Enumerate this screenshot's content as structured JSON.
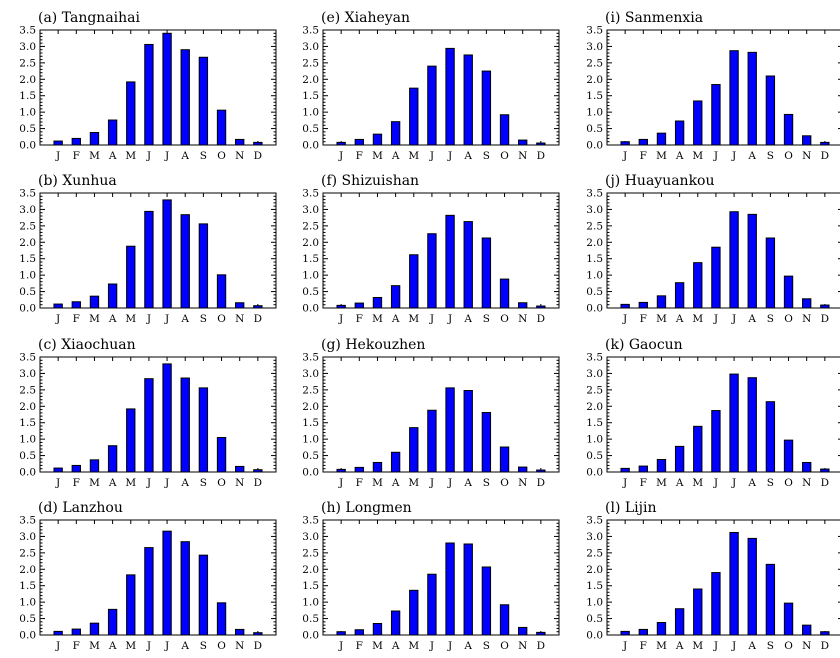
{
  "figure": {
    "colors": {
      "bar_fill": "#0000FF",
      "bar_edge": "#000000",
      "axis": "#000000",
      "background": "#FFFFFF"
    }
  },
  "chart_data": [
    {
      "type": "bar",
      "title": "(a) Tangnaihai",
      "categories": [
        "J",
        "F",
        "M",
        "A",
        "M",
        "J",
        "J",
        "A",
        "S",
        "O",
        "N",
        "D"
      ],
      "values": [
        0.12,
        0.2,
        0.38,
        0.76,
        1.92,
        3.06,
        3.4,
        2.9,
        2.67,
        1.06,
        0.17,
        0.08
      ],
      "ylim": [
        0,
        3.5
      ],
      "yticks": [
        "0.0",
        "0.5",
        "1.0",
        "1.5",
        "2.0",
        "2.5",
        "3.0",
        "3.5"
      ],
      "xlabel": "",
      "ylabel": ""
    },
    {
      "type": "bar",
      "title": "(e) Xiaheyan",
      "categories": [
        "J",
        "F",
        "M",
        "A",
        "M",
        "J",
        "J",
        "A",
        "S",
        "O",
        "N",
        "D"
      ],
      "values": [
        0.08,
        0.17,
        0.33,
        0.71,
        1.73,
        2.4,
        2.94,
        2.74,
        2.25,
        0.92,
        0.15,
        0.06
      ],
      "ylim": [
        0,
        3.5
      ],
      "yticks": [
        "0.0",
        "0.5",
        "1.0",
        "1.5",
        "2.0",
        "2.5",
        "3.0",
        "3.5"
      ],
      "xlabel": "",
      "ylabel": ""
    },
    {
      "type": "bar",
      "title": "(i) Sanmenxia",
      "categories": [
        "J",
        "F",
        "M",
        "A",
        "M",
        "J",
        "J",
        "A",
        "S",
        "O",
        "N",
        "D"
      ],
      "values": [
        0.1,
        0.17,
        0.36,
        0.73,
        1.34,
        1.84,
        2.87,
        2.82,
        2.1,
        0.93,
        0.28,
        0.08
      ],
      "ylim": [
        0,
        3.5
      ],
      "yticks": [
        "0.0",
        "0.5",
        "1.0",
        "1.5",
        "2.0",
        "2.5",
        "3.0",
        "3.5"
      ],
      "xlabel": "",
      "ylabel": ""
    },
    {
      "type": "bar",
      "title": "(b) Xunhua",
      "categories": [
        "J",
        "F",
        "M",
        "A",
        "M",
        "J",
        "J",
        "A",
        "S",
        "O",
        "N",
        "D"
      ],
      "values": [
        0.12,
        0.19,
        0.36,
        0.73,
        1.88,
        2.94,
        3.29,
        2.84,
        2.56,
        1.01,
        0.16,
        0.07
      ],
      "ylim": [
        0,
        3.5
      ],
      "yticks": [
        "0.0",
        "0.5",
        "1.0",
        "1.5",
        "2.0",
        "2.5",
        "3.0",
        "3.5"
      ],
      "xlabel": "",
      "ylabel": ""
    },
    {
      "type": "bar",
      "title": "(f) Shizuishan",
      "categories": [
        "J",
        "F",
        "M",
        "A",
        "M",
        "J",
        "J",
        "A",
        "S",
        "O",
        "N",
        "D"
      ],
      "values": [
        0.08,
        0.15,
        0.32,
        0.68,
        1.62,
        2.26,
        2.82,
        2.63,
        2.13,
        0.88,
        0.16,
        0.06
      ],
      "ylim": [
        0,
        3.5
      ],
      "yticks": [
        "0.0",
        "0.5",
        "1.0",
        "1.5",
        "2.0",
        "2.5",
        "3.0",
        "3.5"
      ],
      "xlabel": "",
      "ylabel": ""
    },
    {
      "type": "bar",
      "title": "(j) Huayuankou",
      "categories": [
        "J",
        "F",
        "M",
        "A",
        "M",
        "J",
        "J",
        "A",
        "S",
        "O",
        "N",
        "D"
      ],
      "values": [
        0.11,
        0.17,
        0.37,
        0.77,
        1.38,
        1.85,
        2.93,
        2.85,
        2.13,
        0.97,
        0.28,
        0.09
      ],
      "ylim": [
        0,
        3.5
      ],
      "yticks": [
        "0.0",
        "0.5",
        "1.0",
        "1.5",
        "2.0",
        "2.5",
        "3.0",
        "3.5"
      ],
      "xlabel": "",
      "ylabel": ""
    },
    {
      "type": "bar",
      "title": "(c) Xiaochuan",
      "categories": [
        "J",
        "F",
        "M",
        "A",
        "M",
        "J",
        "J",
        "A",
        "S",
        "O",
        "N",
        "D"
      ],
      "values": [
        0.12,
        0.2,
        0.37,
        0.8,
        1.92,
        2.84,
        3.29,
        2.86,
        2.56,
        1.05,
        0.17,
        0.07
      ],
      "ylim": [
        0,
        3.5
      ],
      "yticks": [
        "0.0",
        "0.5",
        "1.0",
        "1.5",
        "2.0",
        "2.5",
        "3.0",
        "3.5"
      ],
      "xlabel": "",
      "ylabel": ""
    },
    {
      "type": "bar",
      "title": "(g) Hekouzhen",
      "categories": [
        "J",
        "F",
        "M",
        "A",
        "M",
        "J",
        "J",
        "A",
        "S",
        "O",
        "N",
        "D"
      ],
      "values": [
        0.08,
        0.14,
        0.29,
        0.6,
        1.35,
        1.88,
        2.56,
        2.48,
        1.81,
        0.76,
        0.15,
        0.06
      ],
      "ylim": [
        0,
        3.5
      ],
      "yticks": [
        "0.0",
        "0.5",
        "1.0",
        "1.5",
        "2.0",
        "2.5",
        "3.0",
        "3.5"
      ],
      "xlabel": "",
      "ylabel": ""
    },
    {
      "type": "bar",
      "title": "(k) Gaocun",
      "categories": [
        "J",
        "F",
        "M",
        "A",
        "M",
        "J",
        "J",
        "A",
        "S",
        "O",
        "N",
        "D"
      ],
      "values": [
        0.11,
        0.18,
        0.38,
        0.78,
        1.39,
        1.87,
        2.98,
        2.87,
        2.14,
        0.97,
        0.29,
        0.09
      ],
      "ylim": [
        0,
        3.5
      ],
      "yticks": [
        "0.0",
        "0.5",
        "1.0",
        "1.5",
        "2.0",
        "2.5",
        "3.0",
        "3.5"
      ],
      "xlabel": "",
      "ylabel": ""
    },
    {
      "type": "bar",
      "title": "(d) Lanzhou",
      "categories": [
        "J",
        "F",
        "M",
        "A",
        "M",
        "J",
        "J",
        "A",
        "S",
        "O",
        "N",
        "D"
      ],
      "values": [
        0.11,
        0.18,
        0.36,
        0.78,
        1.83,
        2.66,
        3.16,
        2.84,
        2.43,
        0.98,
        0.17,
        0.07
      ],
      "ylim": [
        0,
        3.5
      ],
      "yticks": [
        "0.0",
        "0.5",
        "1.0",
        "1.5",
        "2.0",
        "2.5",
        "3.0",
        "3.5"
      ],
      "xlabel": "",
      "ylabel": ""
    },
    {
      "type": "bar",
      "title": "(h) Longmen",
      "categories": [
        "J",
        "F",
        "M",
        "A",
        "M",
        "J",
        "J",
        "A",
        "S",
        "O",
        "N",
        "D"
      ],
      "values": [
        0.1,
        0.16,
        0.35,
        0.73,
        1.36,
        1.85,
        2.8,
        2.77,
        2.07,
        0.92,
        0.23,
        0.08
      ],
      "ylim": [
        0,
        3.5
      ],
      "yticks": [
        "0.0",
        "0.5",
        "1.0",
        "1.5",
        "2.0",
        "2.5",
        "3.0",
        "3.5"
      ],
      "xlabel": "",
      "ylabel": ""
    },
    {
      "type": "bar",
      "title": "(l) Lijin",
      "categories": [
        "J",
        "F",
        "M",
        "A",
        "M",
        "J",
        "J",
        "A",
        "S",
        "O",
        "N",
        "D"
      ],
      "values": [
        0.11,
        0.17,
        0.38,
        0.8,
        1.4,
        1.9,
        3.12,
        2.94,
        2.15,
        0.97,
        0.3,
        0.1
      ],
      "ylim": [
        0,
        3.5
      ],
      "yticks": [
        "0.0",
        "0.5",
        "1.0",
        "1.5",
        "2.0",
        "2.5",
        "3.0",
        "3.5"
      ],
      "xlabel": "",
      "ylabel": ""
    }
  ]
}
